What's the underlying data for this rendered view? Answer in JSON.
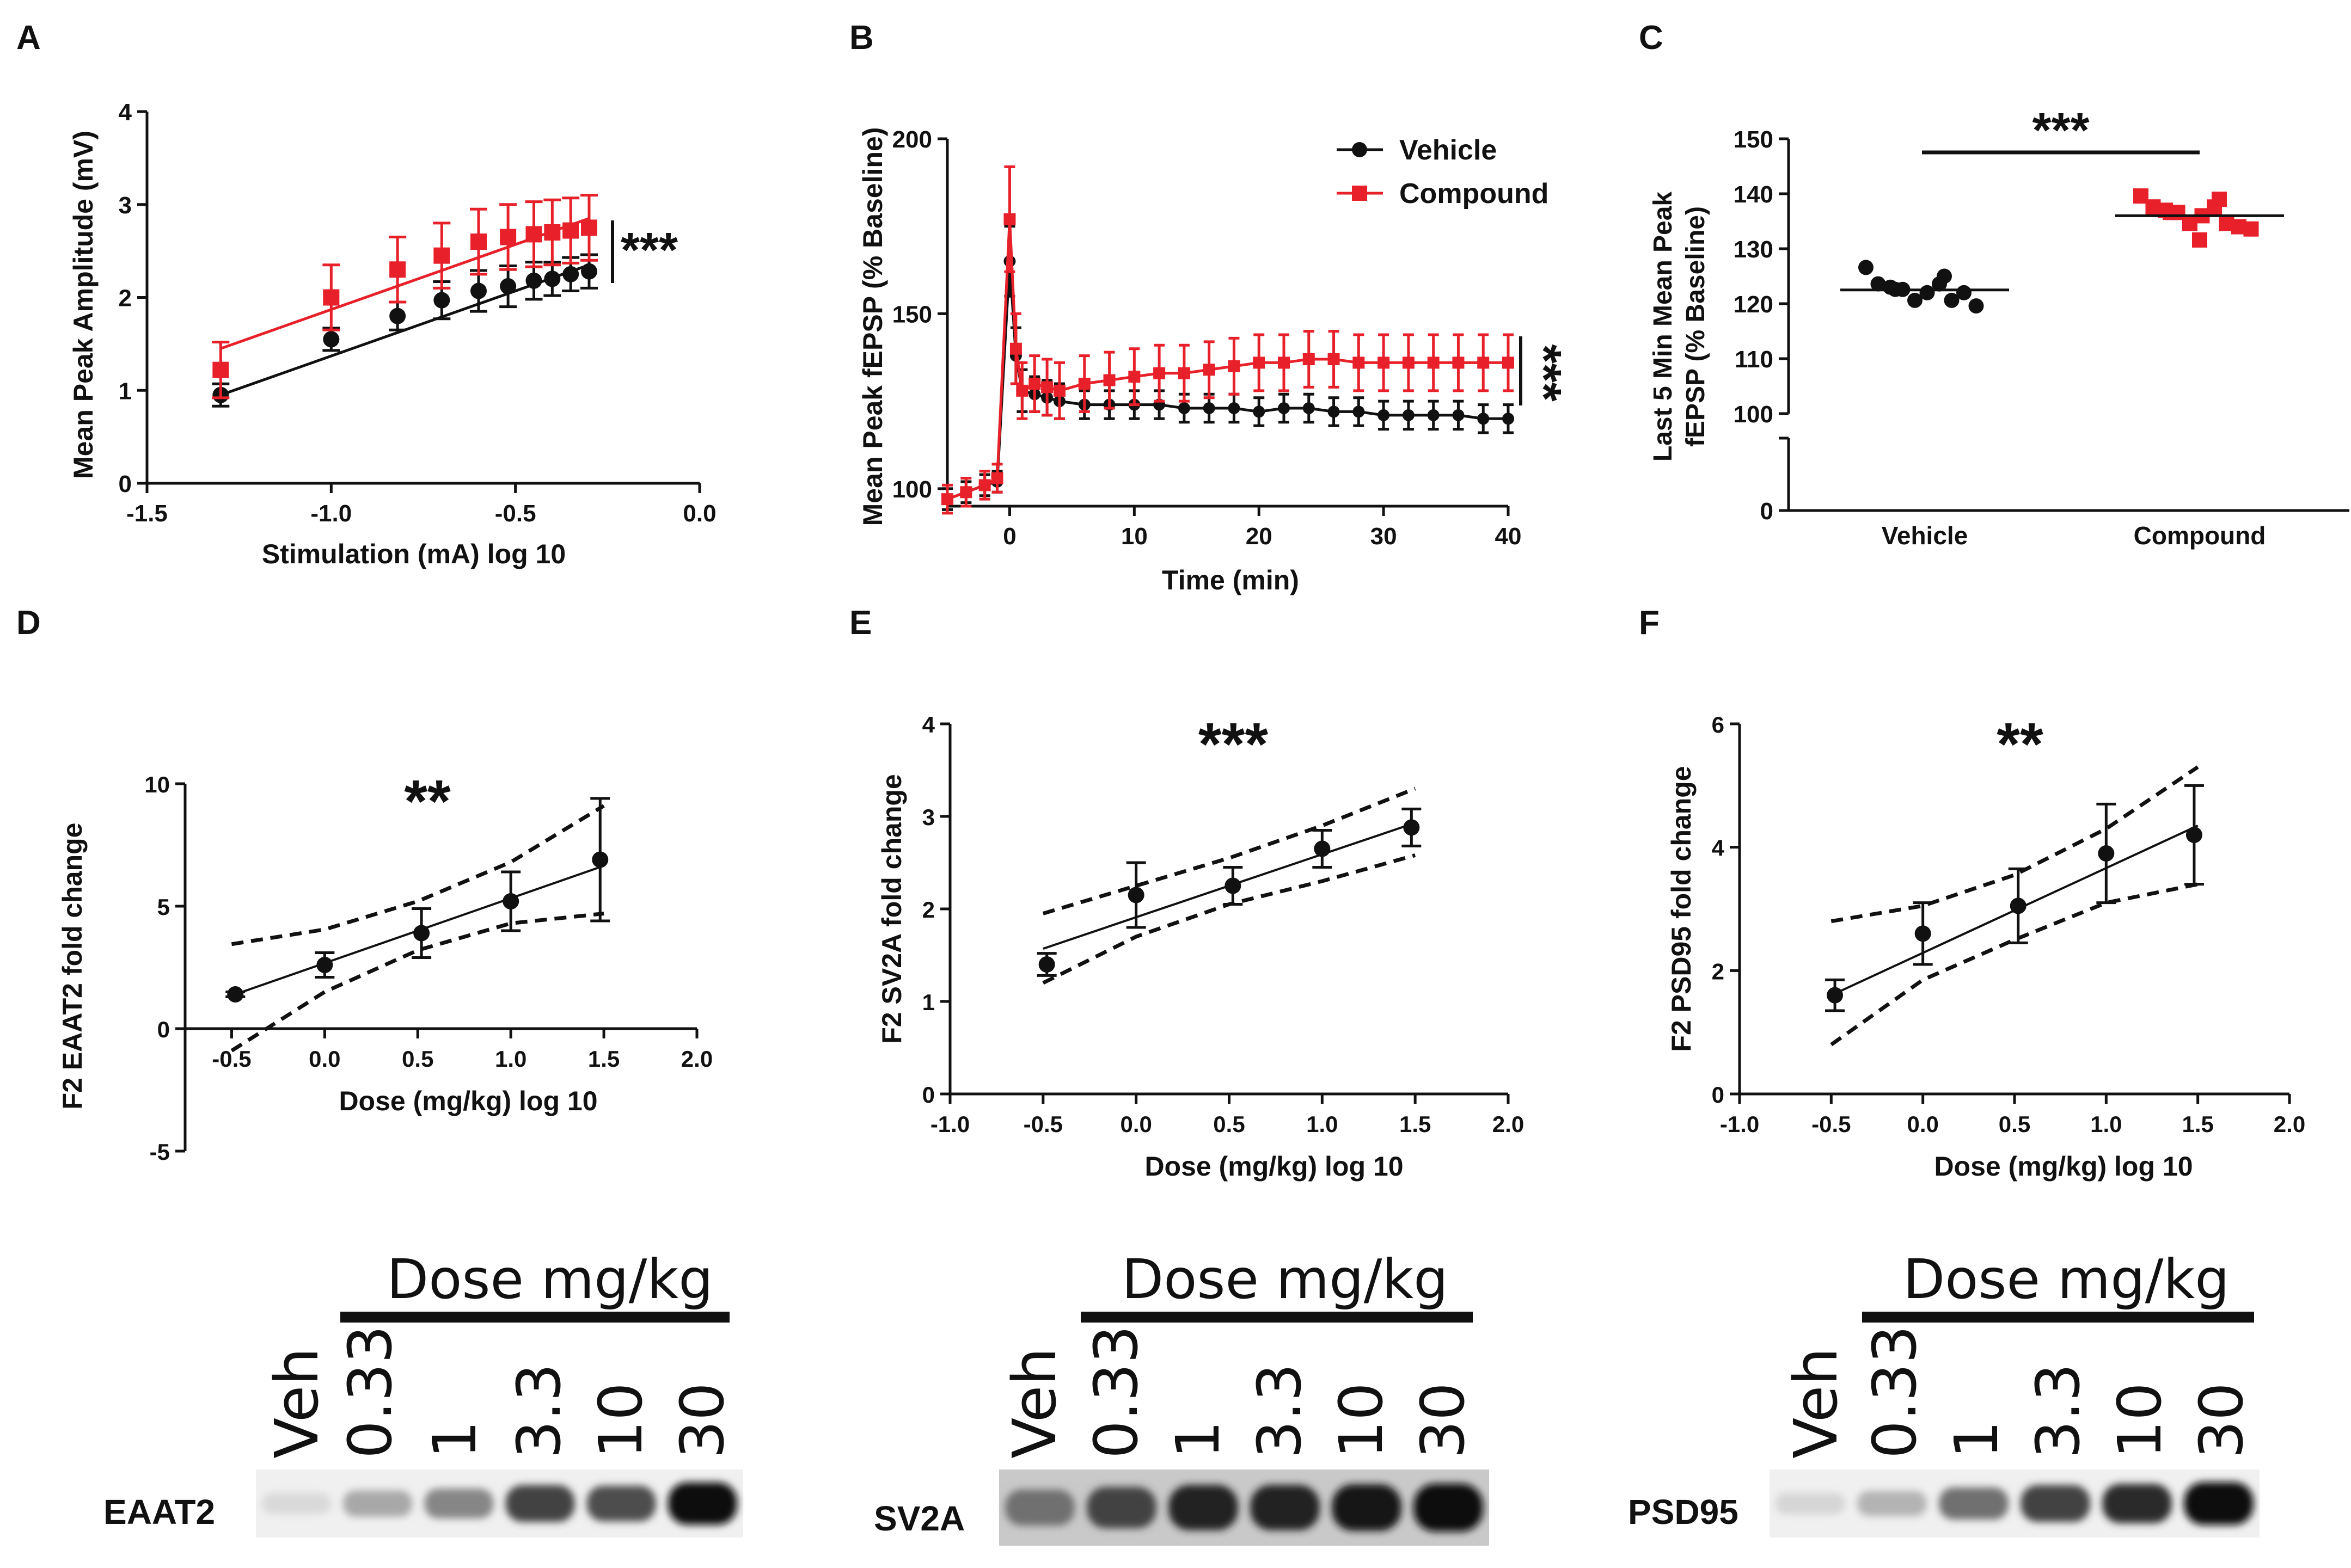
{
  "colors": {
    "black": "#111111",
    "red": "#e8202a"
  },
  "panels": {
    "A": {
      "letter": "A",
      "chart_data": {
        "type": "line",
        "xlabel": "Stimulation (mA) log 10",
        "ylabel": "Mean Peak Amplitude (mV)",
        "xlim": [
          -1.5,
          0.0
        ],
        "ylim": [
          0,
          4
        ],
        "xticks": [
          -1.5,
          -1.0,
          -0.5,
          0.0
        ],
        "xtick_labels": [
          "-1.5",
          "-1.0",
          "-0.5",
          "0.0"
        ],
        "yticks": [
          0,
          1,
          2,
          3,
          4
        ],
        "ytick_labels": [
          "0",
          "1",
          "2",
          "3",
          "4"
        ],
        "significance": "***",
        "series": [
          {
            "name": "Vehicle",
            "color": "#111111",
            "marker": "circle",
            "x": [
              -1.3,
              -1.0,
              -0.82,
              -0.7,
              -0.6,
              -0.52,
              -0.45,
              -0.4,
              -0.35,
              -0.3
            ],
            "y": [
              0.95,
              1.55,
              1.8,
              1.97,
              2.07,
              2.12,
              2.18,
              2.2,
              2.25,
              2.28
            ],
            "err": [
              0.12,
              0.12,
              0.15,
              0.2,
              0.22,
              0.22,
              0.2,
              0.18,
              0.18,
              0.18
            ],
            "fit": [
              [
                -1.3,
                0.95
              ],
              [
                -0.3,
                2.35
              ]
            ]
          },
          {
            "name": "Compound",
            "color": "#e8202a",
            "marker": "square",
            "x": [
              -1.3,
              -1.0,
              -0.82,
              -0.7,
              -0.6,
              -0.52,
              -0.45,
              -0.4,
              -0.35,
              -0.3
            ],
            "y": [
              1.22,
              2.0,
              2.3,
              2.45,
              2.6,
              2.65,
              2.68,
              2.7,
              2.72,
              2.75
            ],
            "err": [
              0.3,
              0.35,
              0.35,
              0.35,
              0.35,
              0.35,
              0.35,
              0.35,
              0.35,
              0.35
            ],
            "fit": [
              [
                -1.3,
                1.45
              ],
              [
                -0.3,
                2.85
              ]
            ]
          }
        ]
      }
    },
    "B": {
      "letter": "B",
      "chart_data": {
        "type": "line",
        "xlabel": "Time (min)",
        "ylabel": "Mean Peak fEPSP (% Baseline)",
        "xlim": [
          -5,
          40
        ],
        "ylim": [
          95,
          200
        ],
        "xticks": [
          0,
          10,
          20,
          30,
          40
        ],
        "xtick_labels": [
          "0",
          "10",
          "20",
          "30",
          "40"
        ],
        "yticks": [
          100,
          150,
          200
        ],
        "ytick_labels": [
          "100",
          "150",
          "200"
        ],
        "significance": "***",
        "legend": {
          "position": "top-right",
          "entries": [
            "Vehicle",
            "Compound"
          ]
        },
        "series": [
          {
            "name": "Vehicle",
            "color": "#111111",
            "marker": "circle",
            "x": [
              -5,
              -3.5,
              -2,
              -1,
              0,
              0.5,
              1,
              2,
              3,
              4,
              6,
              8,
              10,
              12,
              14,
              16,
              18,
              20,
              22,
              24,
              26,
              28,
              30,
              32,
              34,
              36,
              38,
              40
            ],
            "y": [
              97,
              99,
              101,
              102,
              165,
              138,
              128,
              127,
              126,
              125,
              124,
              124,
              124,
              124,
              123,
              123,
              123,
              122,
              123,
              123,
              122,
              122,
              121,
              121,
              121,
              121,
              120,
              120
            ],
            "err": [
              3,
              3,
              3,
              3,
              10,
              8,
              6,
              5,
              5,
              5,
              4,
              4,
              4,
              4,
              4,
              4,
              4,
              4,
              4,
              4,
              4,
              4,
              4,
              4,
              4,
              4,
              4,
              4
            ]
          },
          {
            "name": "Compound",
            "color": "#e8202a",
            "marker": "square",
            "x": [
              -5,
              -3.5,
              -2,
              -1,
              0,
              0.5,
              1,
              2,
              3,
              4,
              6,
              8,
              10,
              12,
              14,
              16,
              18,
              20,
              22,
              24,
              26,
              28,
              30,
              32,
              34,
              36,
              38,
              40
            ],
            "y": [
              97,
              99,
              101,
              103,
              177,
              140,
              128,
              130,
              129,
              128,
              130,
              131,
              132,
              133,
              133,
              134,
              135,
              136,
              136,
              137,
              137,
              136,
              136,
              136,
              136,
              136,
              136,
              136
            ],
            "err": [
              4,
              4,
              4,
              4,
              15,
              10,
              8,
              8,
              8,
              8,
              8,
              8,
              8,
              8,
              8,
              8,
              8,
              8,
              8,
              8,
              8,
              8,
              8,
              8,
              8,
              8,
              8,
              8
            ]
          }
        ]
      }
    },
    "C": {
      "letter": "C",
      "chart_data": {
        "type": "scatter",
        "ylabel": "Last 5 Min Mean Peak fEPSP (% Baseline)",
        "ylabel_lines": [
          "Last 5 Min Mean Peak",
          "fEPSP (% Baseline)"
        ],
        "categories": [
          "Vehicle",
          "Compound"
        ],
        "ylim": [
          0,
          150
        ],
        "axis_break": [
          0,
          100
        ],
        "yticks": [
          0,
          100,
          110,
          120,
          130,
          140,
          150
        ],
        "ytick_labels": [
          "0",
          "100",
          "110",
          "120",
          "130",
          "140",
          "150"
        ],
        "significance": "***",
        "series": [
          {
            "name": "Vehicle",
            "color": "#111111",
            "marker": "circle",
            "mean": 122.5,
            "values": [
              126,
              124,
              123,
              122,
              121,
              122,
              123,
              121,
              122,
              119,
              123,
              125
            ]
          },
          {
            "name": "Compound",
            "color": "#e8202a",
            "marker": "square",
            "mean": 136,
            "values": [
              139,
              138,
              137,
              136,
              135,
              136,
              137,
              135,
              134,
              133,
              137,
              139,
              131
            ]
          }
        ]
      }
    },
    "D": {
      "letter": "D",
      "chart_data": {
        "type": "line",
        "xlabel": "Dose (mg/kg) log 10",
        "ylabel": "F2 EAAT2 fold change",
        "xlim": [
          -0.75,
          2.0
        ],
        "ylim": [
          -5,
          10
        ],
        "xticks": [
          -0.5,
          0.0,
          0.5,
          1.0,
          1.5,
          2.0
        ],
        "xtick_labels": [
          "-0.5",
          "0.0",
          "0.5",
          "1.0",
          "1.5",
          "2.0"
        ],
        "yticks": [
          -5,
          0,
          5,
          10
        ],
        "ytick_labels": [
          "-5",
          "0",
          "5",
          "10"
        ],
        "significance": "**",
        "series": [
          {
            "name": "EAAT2",
            "color": "#111111",
            "marker": "circle",
            "x": [
              -0.48,
              0.0,
              0.52,
              1.0,
              1.48
            ],
            "y": [
              1.4,
              2.6,
              3.9,
              5.2,
              6.9
            ],
            "err": [
              0.1,
              0.5,
              1.0,
              1.2,
              2.5
            ],
            "fit": [
              [
                -0.5,
                1.35
              ],
              [
                1.5,
                6.65
              ]
            ],
            "ci_upper": [
              [
                -0.5,
                3.45
              ],
              [
                0.0,
                4.05
              ],
              [
                0.5,
                5.2
              ],
              [
                1.0,
                6.8
              ],
              [
                1.5,
                9.1
              ]
            ],
            "ci_lower": [
              [
                -0.5,
                -0.9
              ],
              [
                0.0,
                1.5
              ],
              [
                0.5,
                3.2
              ],
              [
                1.0,
                4.3
              ],
              [
                1.5,
                4.7
              ]
            ]
          }
        ]
      }
    },
    "E": {
      "letter": "E",
      "chart_data": {
        "type": "line",
        "xlabel": "Dose (mg/kg) log 10",
        "ylabel": "F2 SV2A fold change",
        "xlim": [
          -1.0,
          2.0
        ],
        "ylim": [
          0,
          4
        ],
        "xticks": [
          -1.0,
          -0.5,
          0.0,
          0.5,
          1.0,
          1.5,
          2.0
        ],
        "xtick_labels": [
          "-1.0",
          "-0.5",
          "0.0",
          "0.5",
          "1.0",
          "1.5",
          "2.0"
        ],
        "yticks": [
          0,
          1,
          2,
          3,
          4
        ],
        "ytick_labels": [
          "0",
          "1",
          "2",
          "3",
          "4"
        ],
        "significance": "***",
        "series": [
          {
            "name": "SV2A",
            "color": "#111111",
            "marker": "circle",
            "x": [
              -0.48,
              0.0,
              0.52,
              1.0,
              1.48
            ],
            "y": [
              1.4,
              2.15,
              2.25,
              2.65,
              2.88
            ],
            "err": [
              0.12,
              0.35,
              0.2,
              0.2,
              0.2
            ],
            "fit": [
              [
                -0.5,
                1.57
              ],
              [
                1.5,
                2.93
              ]
            ],
            "ci_upper": [
              [
                -0.5,
                1.95
              ],
              [
                0.0,
                2.25
              ],
              [
                0.5,
                2.55
              ],
              [
                1.0,
                2.9
              ],
              [
                1.5,
                3.3
              ]
            ],
            "ci_lower": [
              [
                -0.5,
                1.2
              ],
              [
                0.0,
                1.7
              ],
              [
                0.5,
                2.05
              ],
              [
                1.0,
                2.3
              ],
              [
                1.5,
                2.58
              ]
            ]
          }
        ]
      }
    },
    "F": {
      "letter": "F",
      "chart_data": {
        "type": "line",
        "xlabel": "Dose (mg/kg) log 10",
        "ylabel": "F2 PSD95 fold change",
        "xlim": [
          -1.0,
          2.0
        ],
        "ylim": [
          0,
          6
        ],
        "xticks": [
          -1.0,
          -0.5,
          0.0,
          0.5,
          1.0,
          1.5,
          2.0
        ],
        "xtick_labels": [
          "-1.0",
          "-0.5",
          "0.0",
          "0.5",
          "1.0",
          "1.5",
          "2.0"
        ],
        "yticks": [
          0,
          2,
          4,
          6
        ],
        "ytick_labels": [
          "0",
          "2",
          "4",
          "6"
        ],
        "significance": "**",
        "series": [
          {
            "name": "PSD95",
            "color": "#111111",
            "marker": "circle",
            "x": [
              -0.48,
              0.0,
              0.52,
              1.0,
              1.48
            ],
            "y": [
              1.6,
              2.6,
              3.05,
              3.9,
              4.2
            ],
            "err": [
              0.25,
              0.5,
              0.6,
              0.8,
              0.8
            ],
            "fit": [
              [
                -0.5,
                1.6
              ],
              [
                1.5,
                4.35
              ]
            ],
            "ci_upper": [
              [
                -0.5,
                2.8
              ],
              [
                0.0,
                3.05
              ],
              [
                0.5,
                3.55
              ],
              [
                1.0,
                4.3
              ],
              [
                1.5,
                5.3
              ]
            ],
            "ci_lower": [
              [
                -0.5,
                0.8
              ],
              [
                0.0,
                1.85
              ],
              [
                0.5,
                2.5
              ],
              [
                1.0,
                3.1
              ],
              [
                1.5,
                3.4
              ]
            ]
          }
        ]
      }
    }
  },
  "blots": [
    {
      "protein": "EAAT2",
      "header": "Dose mg/kg",
      "lanes": [
        "Veh",
        "0.33",
        "1",
        "3.3",
        "10",
        "30"
      ],
      "intensities": [
        0.08,
        0.3,
        0.45,
        0.75,
        0.7,
        0.98
      ]
    },
    {
      "protein": "SV2A",
      "header": "Dose mg/kg",
      "lanes": [
        "Veh",
        "0.33",
        "1",
        "3.3",
        "10",
        "30"
      ],
      "intensities": [
        0.55,
        0.75,
        0.9,
        0.9,
        0.95,
        1.0
      ]
    },
    {
      "protein": "PSD95",
      "header": "Dose mg/kg",
      "lanes": [
        "Veh",
        "0.33",
        "1",
        "3.3",
        "10",
        "30"
      ],
      "intensities": [
        0.1,
        0.25,
        0.55,
        0.75,
        0.85,
        1.0
      ]
    }
  ]
}
